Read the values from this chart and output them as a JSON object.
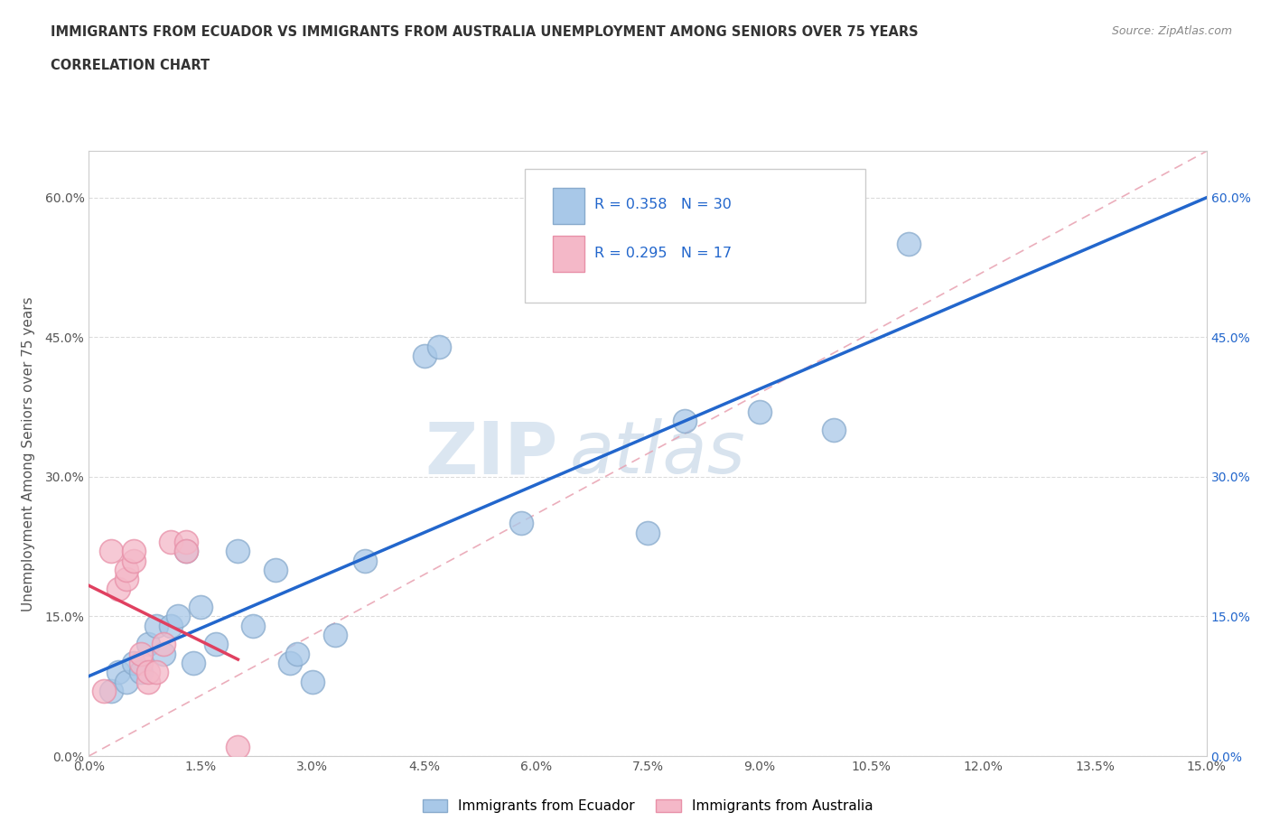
{
  "title_line1": "IMMIGRANTS FROM ECUADOR VS IMMIGRANTS FROM AUSTRALIA UNEMPLOYMENT AMONG SENIORS OVER 75 YEARS",
  "title_line2": "CORRELATION CHART",
  "source_text": "Source: ZipAtlas.com",
  "ylabel": "Unemployment Among Seniors over 75 years",
  "xlim": [
    0.0,
    0.15
  ],
  "ylim": [
    0.0,
    0.65
  ],
  "xticks": [
    0.0,
    0.015,
    0.03,
    0.045,
    0.06,
    0.075,
    0.09,
    0.105,
    0.12,
    0.135,
    0.15
  ],
  "yticks": [
    0.0,
    0.15,
    0.3,
    0.45,
    0.6
  ],
  "ecuador_color": "#a8c8e8",
  "australia_color": "#f4b8c8",
  "ecuador_edge": "#88aacc",
  "australia_edge": "#e890a8",
  "trend_ecuador_color": "#2266cc",
  "trend_australia_color": "#e04060",
  "ref_line_color": "#e8a0b0",
  "ecuador_R": 0.358,
  "ecuador_N": 30,
  "australia_R": 0.295,
  "australia_N": 17,
  "ecuador_x": [
    0.003,
    0.004,
    0.005,
    0.006,
    0.007,
    0.008,
    0.009,
    0.01,
    0.011,
    0.012,
    0.013,
    0.014,
    0.015,
    0.017,
    0.02,
    0.022,
    0.025,
    0.027,
    0.028,
    0.03,
    0.033,
    0.037,
    0.045,
    0.047,
    0.058,
    0.075,
    0.08,
    0.09,
    0.1,
    0.11
  ],
  "ecuador_y": [
    0.07,
    0.09,
    0.08,
    0.1,
    0.09,
    0.12,
    0.14,
    0.11,
    0.14,
    0.15,
    0.22,
    0.1,
    0.16,
    0.12,
    0.22,
    0.14,
    0.2,
    0.1,
    0.11,
    0.08,
    0.13,
    0.21,
    0.43,
    0.44,
    0.25,
    0.24,
    0.36,
    0.37,
    0.35,
    0.55
  ],
  "australia_x": [
    0.002,
    0.003,
    0.004,
    0.005,
    0.005,
    0.006,
    0.006,
    0.007,
    0.007,
    0.008,
    0.008,
    0.009,
    0.01,
    0.011,
    0.013,
    0.013,
    0.02
  ],
  "australia_y": [
    0.07,
    0.22,
    0.18,
    0.19,
    0.2,
    0.21,
    0.22,
    0.1,
    0.11,
    0.08,
    0.09,
    0.09,
    0.12,
    0.23,
    0.23,
    0.22,
    0.01
  ],
  "watermark_zip": "ZIP",
  "watermark_atlas": "atlas",
  "background_color": "#ffffff",
  "grid_color": "#cccccc",
  "legend_ecuador_label": "Immigrants from Ecuador",
  "legend_australia_label": "Immigrants from Australia"
}
